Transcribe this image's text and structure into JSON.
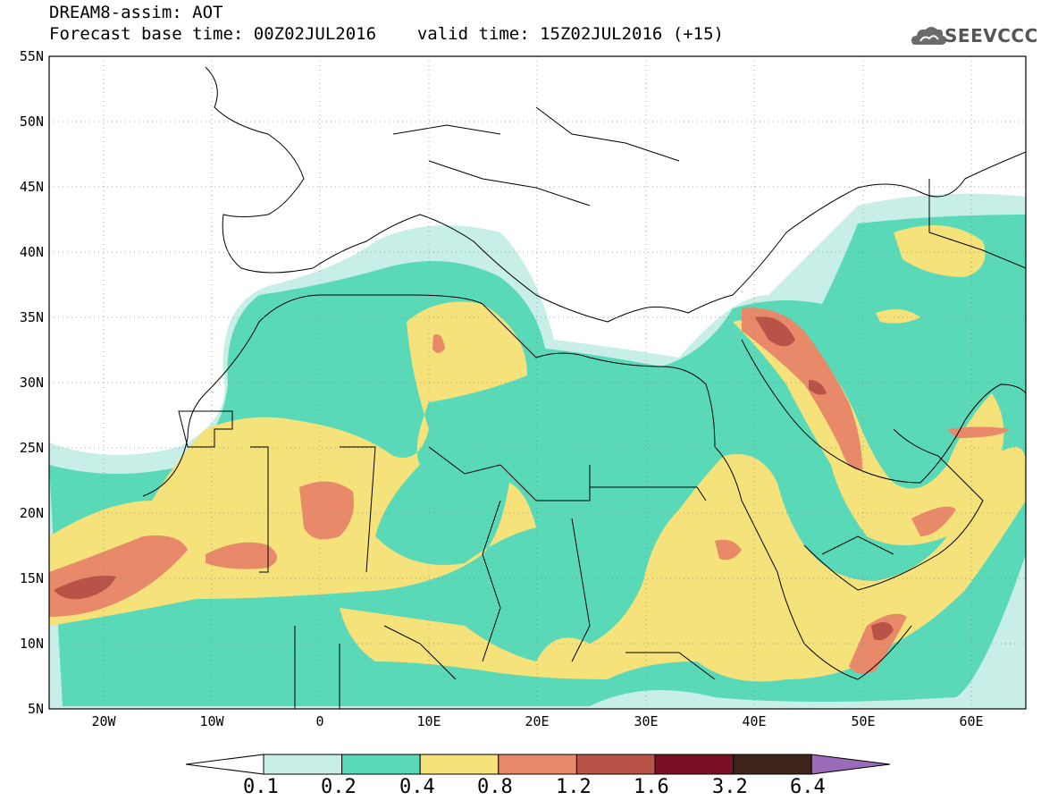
{
  "header": {
    "title": "DREAM8-assim: AOT",
    "forecast_base": "Forecast base time: 00Z02JUL2016",
    "valid_time": "valid time: 15Z02JUL2016 (+15)"
  },
  "logo": {
    "text": "SEEVCCC",
    "icon": "cloud-icon"
  },
  "map": {
    "lat_labels": [
      "55N",
      "50N",
      "45N",
      "40N",
      "35N",
      "30N",
      "25N",
      "20N",
      "15N",
      "10N",
      "5N"
    ],
    "lon_labels": [
      "20W",
      "10W",
      "0",
      "10E",
      "20E",
      "30E",
      "40E",
      "50E",
      "60E"
    ],
    "extent": {
      "lon": [
        -25,
        65
      ],
      "lat": [
        5,
        55
      ]
    }
  },
  "colorbar": {
    "labels": [
      "0.1",
      "0.2",
      "0.4",
      "0.8",
      "1.2",
      "1.6",
      "3.2",
      "6.4"
    ],
    "colors": [
      "#ffffff",
      "#c7efe8",
      "#5ad9b8",
      "#f5e27a",
      "#e8896a",
      "#b85447",
      "#7a0f25",
      "#3e2418",
      "#9b6ab8"
    ]
  }
}
